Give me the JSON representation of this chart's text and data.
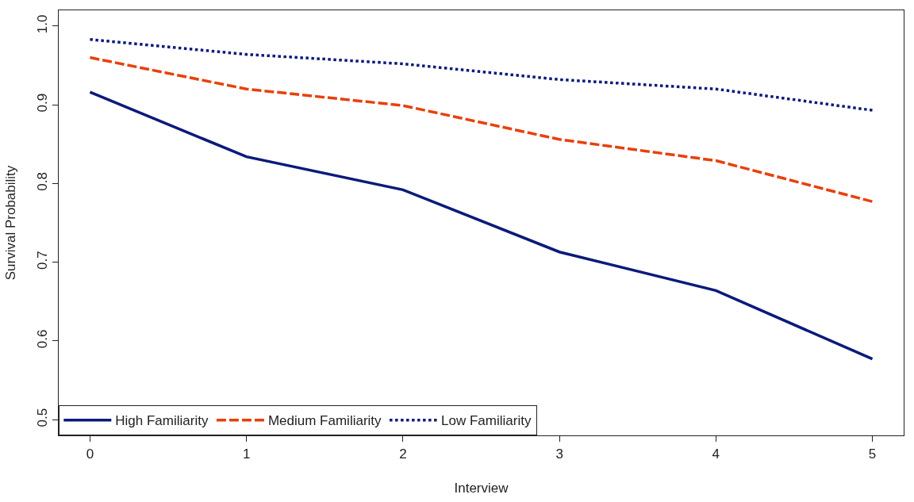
{
  "chart_data": {
    "type": "line",
    "xlabel": "Interview",
    "ylabel": "Survival Probability",
    "x": [
      0,
      1,
      2,
      3,
      4,
      5
    ],
    "series": [
      {
        "name": "High Familiarity",
        "color": "#0a1a7a",
        "line_style": "solid",
        "values": [
          0.916,
          0.834,
          0.792,
          0.713,
          0.664,
          0.577
        ]
      },
      {
        "name": "Medium Familiarity",
        "color": "#e8400c",
        "line_style": "dashed",
        "values": [
          0.96,
          0.92,
          0.899,
          0.856,
          0.829,
          0.777
        ]
      },
      {
        "name": "Low Familiarity",
        "color": "#0a1a7a",
        "line_style": "dotted",
        "values": [
          0.983,
          0.964,
          0.952,
          0.932,
          0.92,
          0.893
        ]
      }
    ],
    "xlim": [
      -0.2,
      5.2
    ],
    "xticks": [
      0,
      1,
      2,
      3,
      4,
      5
    ],
    "ylim": [
      0.48,
      1.02
    ],
    "yticks": [
      0.5,
      0.6,
      0.7,
      0.8,
      0.9,
      {
        "value": 1.0,
        "label": "1.0"
      }
    ],
    "grid": false,
    "legend": "bottom left",
    "marker": "none"
  }
}
